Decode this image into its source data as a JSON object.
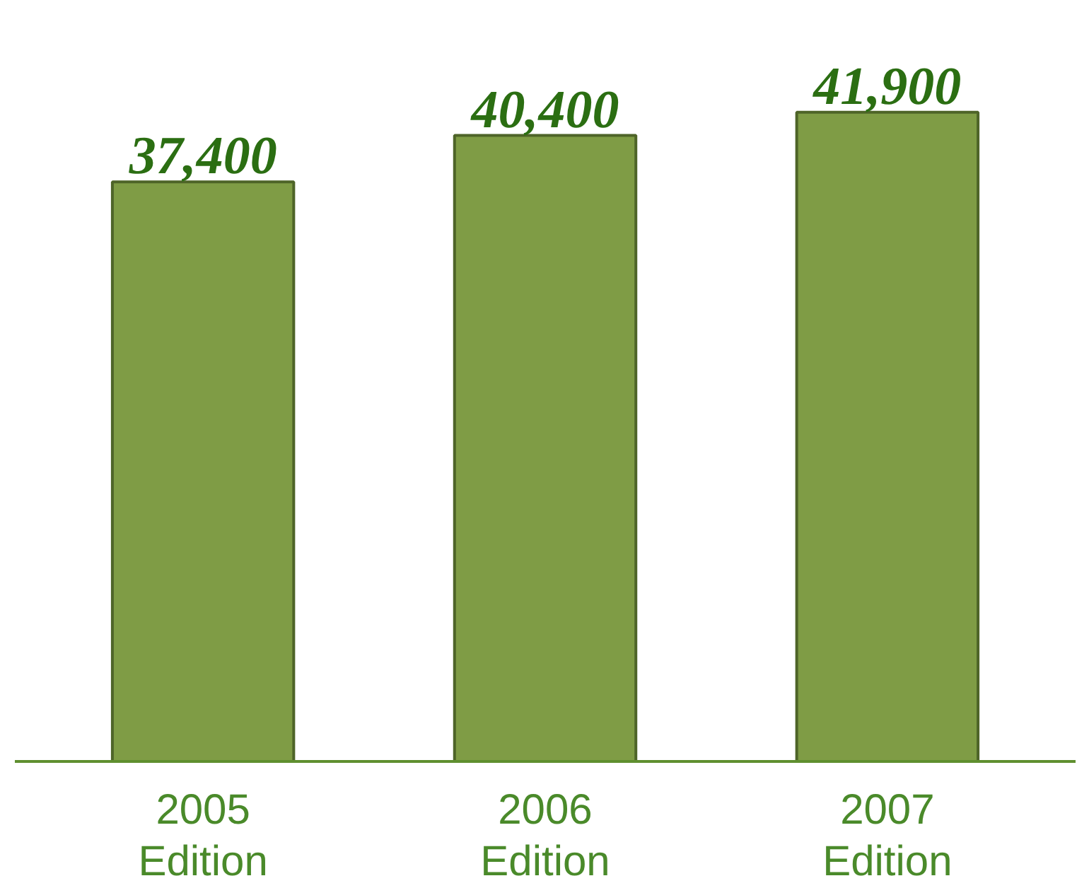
{
  "chart_data": {
    "type": "bar",
    "categories": [
      "2005\nEdition",
      "2006\nEdition",
      "2007\nEdition"
    ],
    "values": [
      37400,
      40400,
      41900
    ],
    "color": "#7f9c45",
    "value_labels": [
      "37,400",
      "40,400",
      "41,900"
    ],
    "tick_labels": "x",
    "grid": false
  }
}
